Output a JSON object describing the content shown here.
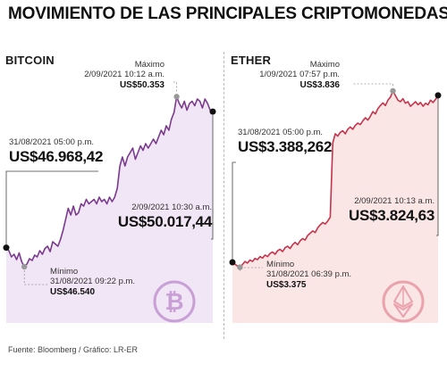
{
  "title": "MOVIMIENTO DE LAS PRINCIPALES CRIPTOMONEDAS",
  "source": "Fuente: Bloomberg / Gráfico: LR-ER",
  "chart_data": [
    {
      "type": "line",
      "name": "BITCOIN",
      "x_range": [
        "31/08/2021 05:00 p.m.",
        "2/09/2021 10:30 a.m."
      ],
      "ylim": [
        46400,
        50600
      ],
      "y": [
        46968,
        46900,
        46760,
        46820,
        46700,
        46850,
        46650,
        46540,
        46600,
        46720,
        46680,
        46800,
        46760,
        46900,
        46820,
        46950,
        47000,
        46880,
        47100,
        47050,
        47000,
        47150,
        47350,
        47600,
        47850,
        47700,
        47900,
        47700,
        47750,
        47950,
        47900,
        48050,
        47950,
        48000,
        48050,
        47950,
        48100,
        48000,
        48050,
        47950,
        48100,
        48000,
        48100,
        48300,
        48800,
        49000,
        48800,
        49000,
        49100,
        49200,
        48950,
        49100,
        49250,
        49150,
        49300,
        49200,
        49300,
        49400,
        49300,
        49450,
        49600,
        49500,
        49700,
        49600,
        49850,
        50000,
        50353,
        50200,
        50100,
        50250,
        50050,
        50200,
        50250,
        50150,
        50300,
        50250,
        50100,
        50300,
        50200,
        50050,
        50017
      ],
      "color": "#7b3a8e",
      "fill": "#f1e6f5",
      "annotations": {
        "start": {
          "label": "31/08/2021 05:00 p.m.",
          "value": "US$46.968,42"
        },
        "max": {
          "title": "Máximo",
          "label": "2/09/2021 10:12 a.m.",
          "value": "US$50.353"
        },
        "end": {
          "label": "2/09/2021 10:30 a.m.",
          "value": "US$50.017,44"
        },
        "min": {
          "title": "Mínimo",
          "label": "31/08/2021 09:22 p.m.",
          "value": "US$46.540"
        }
      },
      "icon": "bitcoin-icon"
    },
    {
      "type": "line",
      "name": "ETHER",
      "x_range": [
        "31/08/2021 05:00 p.m.",
        "2/09/2021 10:13 a.m."
      ],
      "ylim": [
        3360,
        3850
      ],
      "y": [
        3388,
        3383,
        3378,
        3375,
        3382,
        3390,
        3386,
        3394,
        3390,
        3398,
        3395,
        3403,
        3399,
        3407,
        3403,
        3411,
        3415,
        3409,
        3418,
        3422,
        3416,
        3426,
        3430,
        3424,
        3434,
        3440,
        3434,
        3444,
        3450,
        3446,
        3458,
        3464,
        3470,
        3466,
        3478,
        3486,
        3492,
        3488,
        3496,
        3506,
        3700,
        3724,
        3718,
        3728,
        3732,
        3724,
        3736,
        3742,
        3736,
        3746,
        3752,
        3748,
        3758,
        3766,
        3760,
        3770,
        3782,
        3776,
        3790,
        3798,
        3805,
        3798,
        3812,
        3820,
        3836,
        3824,
        3812,
        3808,
        3816,
        3804,
        3808,
        3796,
        3802,
        3808,
        3800,
        3806,
        3796,
        3804,
        3800,
        3812,
        3806,
        3814,
        3824.63
      ],
      "color": "#c8324a",
      "fill": "#fbe6e6",
      "annotations": {
        "start": {
          "label": "31/08/2021 05:00 p.m.",
          "value": "US$3.388,262"
        },
        "max": {
          "title": "Máximo",
          "label": "1/09/2021 07:57 p.m.",
          "value": "US$3.836"
        },
        "end": {
          "label": "2/09/2021 10:13 a.m.",
          "value": "US$3.824,63"
        },
        "min": {
          "title": "Mínimo",
          "label": "31/08/2021 06:39 p.m.",
          "value": "US$3.375"
        }
      },
      "icon": "ether-icon"
    }
  ]
}
